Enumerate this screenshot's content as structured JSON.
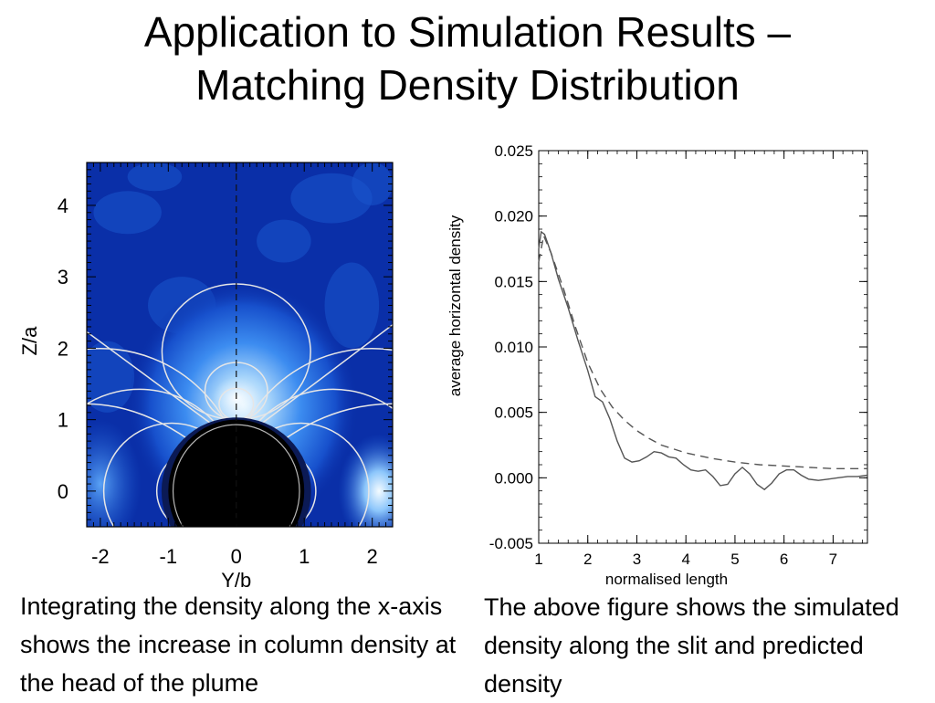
{
  "slide": {
    "title_line1": "Application to Simulation Results –",
    "title_line2": "Matching Density Distribution",
    "caption_left": "Integrating the density along the x-axis shows the increase in column density at the head of the plume",
    "caption_right": "The above figure shows the simulated density along the slit and predicted density"
  },
  "chart_data": [
    {
      "type": "heatmap",
      "xlabel": "Y/b",
      "ylabel": "Z/a",
      "xlim": [
        -2.2,
        2.3
      ],
      "ylim": [
        -0.5,
        4.6
      ],
      "xticks": [
        -2,
        -1,
        0,
        1,
        2
      ],
      "xtick_labels": [
        "-2",
        "-1",
        "0",
        "1",
        "2"
      ],
      "yticks": [
        0,
        1,
        2,
        3,
        4
      ],
      "ytick_labels": [
        "0",
        "1",
        "2",
        "3",
        "4"
      ],
      "occulting_disk_radius": 1.0,
      "slit_y": 0,
      "colors": {
        "background": "#0a2fa8",
        "bright": "#e8f4ff",
        "mid": "#3a8cf0",
        "disk": "#000000",
        "lines": "#e6e6e6"
      }
    },
    {
      "type": "line",
      "xlabel": "normalised length",
      "ylabel": "average horizontal density",
      "xlim": [
        1,
        7.7
      ],
      "ylim": [
        -0.005,
        0.025
      ],
      "xticks": [
        1,
        2,
        3,
        4,
        5,
        6,
        7
      ],
      "xtick_labels": [
        "1",
        "2",
        "3",
        "4",
        "5",
        "6",
        "7"
      ],
      "yticks": [
        -0.005,
        0.0,
        0.005,
        0.01,
        0.015,
        0.02,
        0.025
      ],
      "ytick_labels": [
        "-0.005",
        "0.000",
        "0.005",
        "0.010",
        "0.015",
        "0.020",
        "0.025"
      ],
      "series": [
        {
          "name": "simulated",
          "style": "solid",
          "x": [
            1.0,
            1.05,
            1.12,
            1.25,
            1.4,
            1.6,
            1.8,
            2.0,
            2.15,
            2.3,
            2.45,
            2.6,
            2.75,
            2.9,
            3.05,
            3.2,
            3.35,
            3.5,
            3.65,
            3.8,
            3.95,
            4.1,
            4.25,
            4.4,
            4.55,
            4.7,
            4.85,
            5.0,
            5.15,
            5.3,
            5.45,
            5.6,
            5.75,
            5.9,
            6.05,
            6.2,
            6.35,
            6.5,
            6.7,
            6.9,
            7.1,
            7.3,
            7.5,
            7.7
          ],
          "y": [
            0.0175,
            0.0188,
            0.0186,
            0.0172,
            0.0152,
            0.013,
            0.0105,
            0.0082,
            0.0062,
            0.0058,
            0.0045,
            0.0028,
            0.0015,
            0.0012,
            0.0013,
            0.0016,
            0.002,
            0.0019,
            0.0016,
            0.0015,
            0.001,
            0.0006,
            0.0005,
            0.0006,
            0.0001,
            -0.0006,
            -0.0005,
            0.0003,
            0.0008,
            0.0003,
            -0.0005,
            -0.0009,
            -0.0004,
            0.0003,
            0.0006,
            0.0006,
            0.0002,
            -0.0001,
            -0.0002,
            -0.0001,
            0.0,
            0.0001,
            0.0001,
            0.0002
          ]
        },
        {
          "name": "predicted",
          "style": "dashed",
          "x": [
            1.0,
            1.1,
            1.25,
            1.5,
            1.75,
            2.0,
            2.25,
            2.5,
            2.75,
            3.0,
            3.25,
            3.5,
            4.0,
            4.5,
            5.0,
            5.5,
            6.0,
            6.5,
            7.0,
            7.5,
            7.7
          ],
          "y": [
            0.0165,
            0.0185,
            0.0172,
            0.0145,
            0.0115,
            0.0088,
            0.0068,
            0.0054,
            0.0044,
            0.0036,
            0.003,
            0.0025,
            0.0019,
            0.0015,
            0.0012,
            0.001,
            0.0009,
            0.0008,
            0.0007,
            0.0007,
            0.0007
          ]
        }
      ]
    }
  ]
}
